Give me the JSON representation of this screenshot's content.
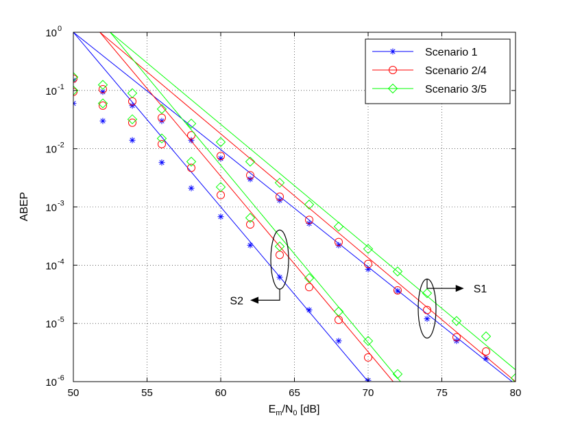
{
  "chart_data": {
    "type": "line",
    "xlabel_main": "E",
    "xlabel_sub1": "m",
    "xlabel_mid": "/N",
    "xlabel_sub2": "0",
    "xlabel_tail": " [dB]",
    "ylabel": "ABEP",
    "xlim": [
      50,
      80
    ],
    "ylim": [
      1e-06,
      1
    ],
    "yscale": "log",
    "grid": true,
    "legend_position": "top-right",
    "x_ticks": [
      50,
      55,
      60,
      65,
      70,
      75,
      80
    ],
    "y_tick_exponents": [
      0,
      -1,
      -2,
      -3,
      -4,
      -5,
      -6
    ],
    "y_tick_base": "10",
    "series": [
      {
        "name": "Scenario 1",
        "color": "#0000ff",
        "marker": "asterisk",
        "lines": [
          {
            "x": [
              50,
              70
            ],
            "y": [
              1.0,
              1e-06
            ]
          },
          {
            "x": [
              50,
              80
            ],
            "y": [
              1.0,
              9e-07
            ]
          }
        ],
        "markers_s2": {
          "x": [
            50,
            52,
            54,
            56,
            58,
            60,
            62,
            64,
            66,
            68,
            70
          ],
          "y": [
            0.06,
            0.03,
            0.014,
            0.0058,
            0.0021,
            0.00068,
            0.00022,
            6.2e-05,
            1.7e-05,
            5e-06,
            1.05e-06
          ]
        },
        "markers_s1": {
          "x": [
            50,
            52,
            54,
            56,
            58,
            60,
            62,
            64,
            66,
            68,
            70,
            72,
            74,
            76,
            78
          ],
          "y": [
            0.15,
            0.095,
            0.055,
            0.03,
            0.014,
            0.0068,
            0.003,
            0.0013,
            0.00052,
            0.00022,
            8.5e-05,
            3.6e-05,
            1.2e-05,
            5e-06,
            2.5e-06
          ]
        }
      },
      {
        "name": "Scenario 2/4",
        "color": "#ff0000",
        "marker": "circle",
        "lines": [
          {
            "x": [
              51.8,
              71.7
            ],
            "y": [
              1.0,
              1e-06
            ]
          },
          {
            "x": [
              51.8,
              80
            ],
            "y": [
              1.0,
              1e-06
            ]
          }
        ],
        "markers_s2": {
          "x": [
            50,
            52,
            54,
            56,
            58,
            60,
            62,
            64,
            66,
            68,
            70
          ],
          "y": [
            0.095,
            0.055,
            0.028,
            0.012,
            0.0047,
            0.0016,
            0.0005,
            0.00015,
            4.2e-05,
            1.15e-05,
            2.6e-06
          ]
        },
        "markers_s1": {
          "x": [
            50,
            52,
            54,
            56,
            58,
            60,
            62,
            64,
            66,
            68,
            70,
            72,
            74,
            76,
            78
          ],
          "y": [
            0.16,
            0.105,
            0.065,
            0.034,
            0.017,
            0.0075,
            0.0035,
            0.0015,
            0.0006,
            0.00025,
            0.000105,
            3.7e-05,
            1.7e-05,
            5.8e-06,
            3.3e-06
          ]
        }
      },
      {
        "name": "Scenario 3/5",
        "color": "#00ff00",
        "marker": "diamond",
        "lines": [
          {
            "x": [
              52.5,
              72.2
            ],
            "y": [
              1.0,
              1e-06
            ]
          },
          {
            "x": [
              52.5,
              80
            ],
            "y": [
              1.0,
              1.6e-06
            ]
          }
        ],
        "markers_s2": {
          "x": [
            50,
            52,
            54,
            56,
            58,
            60,
            62,
            64,
            66,
            68,
            70,
            72
          ],
          "y": [
            0.1,
            0.06,
            0.032,
            0.015,
            0.006,
            0.0022,
            0.00065,
            0.00021,
            6e-05,
            1.6e-05,
            5e-06,
            1.35e-06
          ]
        },
        "markers_s1": {
          "x": [
            50,
            52,
            54,
            56,
            58,
            60,
            62,
            64,
            66,
            68,
            70,
            72,
            74,
            76,
            78,
            80
          ],
          "y": [
            0.17,
            0.125,
            0.09,
            0.048,
            0.027,
            0.013,
            0.006,
            0.0026,
            0.0011,
            0.00046,
            0.00019,
            7.8e-05,
            3.3e-05,
            1.1e-05,
            6e-06,
            1.15e-06
          ]
        }
      }
    ],
    "annotations": [
      {
        "label": "S1",
        "ellipse_center": [
          74,
          1.8e-05
        ],
        "arrow_to": [
          76.5,
          4e-05
        ]
      },
      {
        "label": "S2",
        "ellipse_center": [
          64,
          0.000125
        ],
        "arrow_to": [
          62,
          2.5e-05
        ]
      }
    ]
  }
}
